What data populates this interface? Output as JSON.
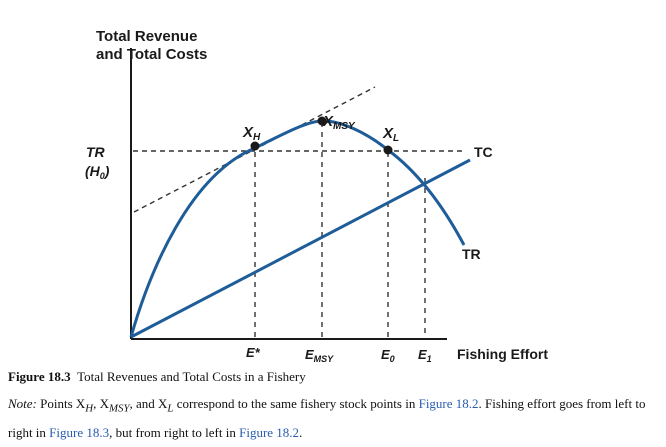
{
  "diagram": {
    "y_axis_title": [
      "Total Revenue",
      "and Total Costs"
    ],
    "tr_label": {
      "main": "TR",
      "sub_prefix": "(H",
      "sub_index": "0",
      "sub_suffix": ")"
    },
    "x_axis_label": "Fishing Effort",
    "x_ticks": {
      "e_star": "E*",
      "e_msy": {
        "base": "E",
        "sub": "MSY"
      },
      "e0": {
        "base": "E",
        "sub": "0"
      },
      "e1": {
        "base": "E",
        "sub": "1"
      }
    },
    "points": {
      "xh": {
        "base": "X",
        "sub": "H"
      },
      "xmsy": {
        "base": "X",
        "sub": "MSY"
      },
      "xl": {
        "base": "X",
        "sub": "L"
      }
    },
    "curve_labels": {
      "tc": "TC",
      "tr": "TR"
    },
    "colors": {
      "curve": "#1f5d99",
      "axis": "#1a1a1a",
      "dashed": "#333333",
      "link": "#2a5db0"
    }
  },
  "caption": {
    "figure_label": "Figure 18.3",
    "figure_title": "Total Revenues and Total Costs in a Fishery",
    "note_label": "Note:",
    "note_parts": [
      " Points X",
      "H",
      ", X",
      "MSY",
      ", and X",
      "L",
      " correspond to the same fishery stock points in ",
      "Figure 18.2",
      ". Fishing effort goes from left to right in ",
      "Figure 18.3",
      ", but from right to left in ",
      "Figure 18.2",
      "."
    ]
  }
}
